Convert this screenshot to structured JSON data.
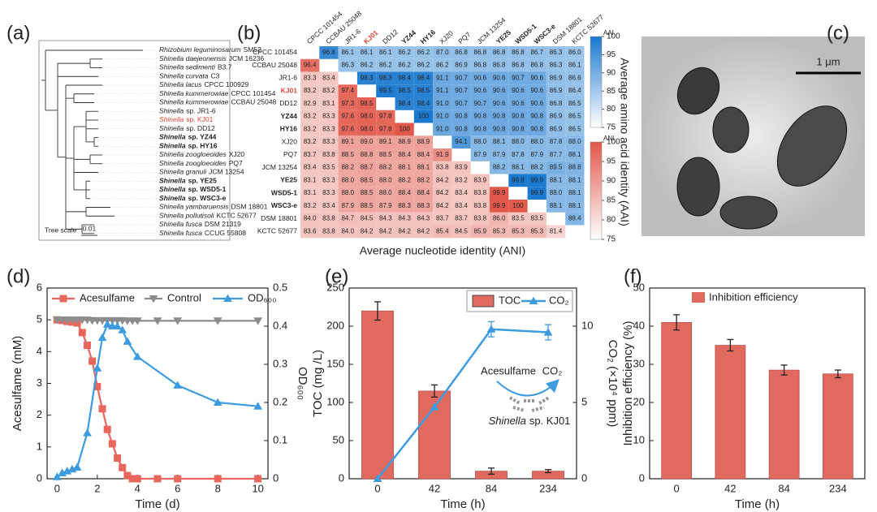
{
  "chart_data": [
    {
      "type": "tree",
      "panel_label": "(a)",
      "leaves": [
        {
          "species": "Rhizobium leguminosarum",
          "strain": "SM52"
        },
        {
          "species": "Shinella daejeonensis",
          "strain": "JCM 16236"
        },
        {
          "species": "Shinella sedimenti",
          "strain": "B3.7"
        },
        {
          "species": "Shinella curvata",
          "strain": "C3"
        },
        {
          "species": "Shinella lacus",
          "strain": "CPCC 100929"
        },
        {
          "species": "Shinella kummerowiae",
          "strain": "CPCC 101454"
        },
        {
          "species": "Shinella kummerowiae",
          "strain": "CCBAU 25048"
        },
        {
          "species": "Shinella",
          "strain": "sp. JR1-6"
        },
        {
          "species": "Shinella",
          "strain": "sp. KJ01",
          "color": "#e0463a"
        },
        {
          "species": "Shinella",
          "strain": "sp. DD12"
        },
        {
          "species": "Shinella",
          "strain": "sp. YZ44",
          "bold": true
        },
        {
          "species": "Shinella",
          "strain": "sp. HY16",
          "bold": true
        },
        {
          "species": "Shinella zoogloeoides",
          "strain": "XJ20"
        },
        {
          "species": "Shinella zoogloeoides",
          "strain": "PQ7"
        },
        {
          "species": "Shinella granuli",
          "strain": "JCM 13254"
        },
        {
          "species": "Shinella",
          "strain": "sp. YE25",
          "bold": true
        },
        {
          "species": "Shinella",
          "strain": "sp. WSD5-1",
          "bold": true
        },
        {
          "species": "Shinella",
          "strain": "sp. WSC3-e",
          "bold": true
        },
        {
          "species": "Shinella yambaruensis",
          "strain": "DSM 18801"
        },
        {
          "species": "Shinella pollutisoli",
          "strain": "KCTC 52677"
        },
        {
          "species": "Shinella fusca",
          "strain": "DSM 21319"
        },
        {
          "species": "Shinella fusca",
          "strain": "CCUG 55808"
        }
      ],
      "scale_label": "Tree scale",
      "scale_value": 0.01
    },
    {
      "type": "heatmap",
      "panel_label": "(b)",
      "rows": [
        "CPCC 101454",
        "CCBAU 25048",
        "JR1-6",
        "KJ01",
        "DD12",
        "YZ44",
        "HY16",
        "XJ20",
        "PQ7",
        "JCM 13254",
        "YE25",
        "WSD5-1",
        "WSC3-e",
        "DSM 18801",
        "KCTC 52677"
      ],
      "columns": [
        "CPCC 101454",
        "CCBAU 25048",
        "JR1-6",
        "KJ01",
        "DD12",
        "YZ44",
        "HY16",
        "XJ20",
        "PQ7",
        "JCM 13254",
        "YE25",
        "WSD5-1",
        "WSC3-e",
        "DSM 18801",
        "KCTC 52677"
      ],
      "emphasis": [
        "normal",
        "normal",
        "normal",
        "red",
        "normal",
        "bold",
        "bold",
        "normal",
        "normal",
        "normal",
        "bold",
        "bold",
        "bold",
        "normal",
        "normal"
      ],
      "values": [
        [
          null,
          96.8,
          86.1,
          86.1,
          86.1,
          86.2,
          86.2,
          87.0,
          86.8,
          86.8,
          86.8,
          86.8,
          86.7,
          86.3,
          86.0
        ],
        [
          96.4,
          null,
          86.3,
          86.2,
          86.2,
          86.2,
          86.2,
          86.2,
          86.9,
          86.8,
          86.8,
          86.8,
          86.8,
          86.3,
          86.1
        ],
        [
          83.3,
          83.4,
          null,
          98.3,
          98.3,
          98.4,
          98.4,
          91.1,
          90.7,
          90.6,
          90.6,
          90.7,
          90.6,
          86.9,
          86.6
        ],
        [
          83.2,
          83.2,
          97.4,
          null,
          99.5,
          98.5,
          98.5,
          91.1,
          90.7,
          90.6,
          90.6,
          90.6,
          90.6,
          86.9,
          86.4
        ],
        [
          82.9,
          83.1,
          97.3,
          98.5,
          null,
          98.4,
          98.4,
          91.0,
          90.7,
          90.7,
          90.6,
          90.6,
          90.6,
          86.8,
          86.5
        ],
        [
          83.2,
          83.3,
          97.6,
          98.0,
          97.8,
          null,
          100,
          91.0,
          90.8,
          90.8,
          90.8,
          90.8,
          90.8,
          86.9,
          86.5
        ],
        [
          83.2,
          83.3,
          97.6,
          98.0,
          97.8,
          100,
          null,
          91.0,
          90.8,
          90.8,
          90.8,
          90.8,
          90.8,
          86.9,
          86.5
        ],
        [
          83.2,
          83.3,
          89.1,
          89.0,
          89.1,
          88.9,
          88.9,
          null,
          94.1,
          88.0,
          88.1,
          88.0,
          88.0,
          87.8,
          88.0
        ],
        [
          83.7,
          83.8,
          88.5,
          88.8,
          88.5,
          88.4,
          88.4,
          91.9,
          null,
          87.9,
          87.9,
          87.8,
          87.9,
          87.7,
          88.1
        ],
        [
          83.4,
          83.5,
          88.2,
          88.7,
          88.2,
          88.1,
          88.1,
          83.8,
          83.9,
          null,
          88.2,
          88.1,
          88.2,
          89.5,
          88.8
        ],
        [
          83.1,
          83.3,
          88.0,
          88.5,
          88.0,
          88.2,
          88.2,
          84.2,
          83.2,
          83.9,
          null,
          99.9,
          99.9,
          88.1,
          88.1
        ],
        [
          83.1,
          83.3,
          88.0,
          88.5,
          88.0,
          88.4,
          88.4,
          84.2,
          83.4,
          83.8,
          99.9,
          null,
          99.9,
          88.0,
          88.1
        ],
        [
          83.2,
          83.4,
          87.9,
          88.5,
          87.9,
          88.3,
          88.3,
          84.2,
          83.4,
          83.8,
          99.9,
          100,
          null,
          88.1,
          88.1
        ],
        [
          84.0,
          83.8,
          84.7,
          84.5,
          84.3,
          84.3,
          84.3,
          83.7,
          83.7,
          83.8,
          86.0,
          83.5,
          83.5,
          null,
          88.4
        ],
        [
          83.6,
          83.8,
          84.0,
          84.2,
          84.2,
          84.2,
          84.2,
          85.4,
          84.5,
          85.9,
          85.3,
          85.3,
          85.3,
          81.4,
          null
        ]
      ],
      "value_labels": [
        [
          null,
          "96.8",
          "86.1",
          "86.1",
          "86.1",
          "86.2",
          "86.2",
          "87.0",
          "86.8",
          "86.8",
          "86.8",
          "86.8",
          "86.7",
          "86.3",
          "86.0"
        ],
        [
          "96.4",
          null,
          "86.3",
          "86.2",
          "86.2",
          "86.2",
          "86.2",
          "86.2",
          "86.9",
          "86.8",
          "86.8",
          "86.8",
          "86.8",
          "86.3",
          "86.1"
        ],
        [
          "83.3",
          "83.4",
          null,
          "98.3",
          "98.3",
          "98.4",
          "98.4",
          "91.1",
          "90.7",
          "90.6",
          "90.6",
          "90.7",
          "90.6",
          "86.9",
          "86.6"
        ],
        [
          "83.2",
          "83.2",
          "97.4",
          null,
          "99.5",
          "98.5",
          "98.5",
          "91.1",
          "90.7",
          "90.6",
          "90.6",
          "90.6",
          "90.6",
          "86.9",
          "86.4"
        ],
        [
          "82.9",
          "83.1",
          "97.3",
          "98.5",
          null,
          "98.4",
          "98.4",
          "91.0",
          "90.7",
          "90.7",
          "90.6",
          "90.6",
          "90.6",
          "86.8",
          "86.5"
        ],
        [
          "83.2",
          "83.3",
          "97.6",
          "98.0",
          "97.8",
          null,
          "100",
          "91.0",
          "90.8",
          "90.8",
          "90.8",
          "90.8",
          "90.8",
          "86.9",
          "86.5"
        ],
        [
          "83.2",
          "83.3",
          "97.6",
          "98.0",
          "97.8",
          "100",
          null,
          "91.0",
          "90.8",
          "90.8",
          "90.8",
          "90.8",
          "90.8",
          "86.9",
          "86.5"
        ],
        [
          "83.2",
          "83.3",
          "89.1",
          "89.0",
          "89.1",
          "88.9",
          "88.9",
          null,
          "94.1",
          "88.0",
          "88.1",
          "88.0",
          "88.0",
          "87.8",
          "88.0"
        ],
        [
          "83.7",
          "83.8",
          "88.5",
          "88.8",
          "88.5",
          "88.4",
          "88.4",
          "91.9",
          null,
          "87.9",
          "87.9",
          "87.8",
          "87.9",
          "87.7",
          "88.1"
        ],
        [
          "83.4",
          "83.5",
          "88.2",
          "88.7",
          "88.2",
          "88.1",
          "88.1",
          "83.8",
          "83.9",
          null,
          "88.2",
          "88.1",
          "88.2",
          "89.5",
          "88.8"
        ],
        [
          "83.1",
          "83.3",
          "88.0",
          "88.5",
          "88.0",
          "88.2",
          "88.2",
          "84.2",
          "83.2",
          "83.9",
          null,
          "99.9",
          "99.9",
          "88.1",
          "88.1"
        ],
        [
          "83.1",
          "83.3",
          "88.0",
          "88.5",
          "88.0",
          "88.4",
          "88.4",
          "84.2",
          "83.4",
          "83.8",
          "99.9",
          null,
          "99.9",
          "88.0",
          "88.1"
        ],
        [
          "83.2",
          "83.4",
          "87.9",
          "88.5",
          "87.9",
          "88.3",
          "88.3",
          "84.2",
          "83.4",
          "83.8",
          "99.9",
          "100",
          null,
          "88.1",
          "88.1"
        ],
        [
          "84.0",
          "83.8",
          "84.7",
          "84.5",
          "84.3",
          "84.3",
          "84.3",
          "83.7",
          "83.7",
          "83.8",
          "86.0",
          "83.5",
          "83.5",
          null,
          "88.4"
        ],
        [
          "83.6",
          "83.8",
          "84.0",
          "84.2",
          "84.2",
          "84.2",
          "84.2",
          "85.4",
          "84.5",
          "85.9",
          "85.3",
          "85.3",
          "85.3",
          "81.4",
          null
        ]
      ],
      "xlabel": "Average nucleotide identity (ANI)",
      "y2label": "Average amino acid identity (AAI)",
      "colorbars": [
        {
          "name": "AAI",
          "lim": [
            75,
            100
          ],
          "ticks": [
            75,
            80,
            85,
            90,
            95,
            100
          ],
          "colors": [
            "#ffffff",
            "#1a78cf"
          ]
        },
        {
          "name": "ANI",
          "lim": [
            75,
            100
          ],
          "ticks": [
            75,
            80,
            85,
            90,
            95,
            100
          ],
          "colors": [
            "#ffffff",
            "#e2584a"
          ]
        }
      ]
    },
    {
      "type": "image",
      "panel_label": "(c)",
      "scale_bar": "1 μm"
    },
    {
      "type": "line",
      "panel_label": "(d)",
      "xlabel": "Time (d)",
      "ylabel": "Acesulfame (mM)",
      "y2label": "OD₆₀₀",
      "xlim": [
        -0.5,
        10.5
      ],
      "xticks": [
        0,
        2,
        4,
        6,
        8,
        10
      ],
      "ylim": [
        0,
        6
      ],
      "yticks": [
        0,
        1,
        2,
        3,
        4,
        5,
        6
      ],
      "y2lim": [
        0,
        0.5
      ],
      "y2ticks": [
        0,
        0.1,
        0.2,
        0.3,
        0.4,
        0.5
      ],
      "series": [
        {
          "name": "Acesulfame",
          "color": "#e8665c",
          "marker": "square",
          "x": [
            0,
            0.25,
            0.5,
            0.75,
            1,
            1.25,
            1.5,
            1.75,
            2,
            2.25,
            2.5,
            2.75,
            3,
            3.25,
            3.5,
            3.75,
            4,
            5,
            6,
            8,
            10
          ],
          "values": [
            5,
            4.98,
            4.95,
            4.93,
            4.9,
            4.6,
            4.2,
            3.7,
            2.9,
            2.2,
            1.55,
            1.1,
            0.65,
            0.35,
            0.1,
            0,
            0,
            0,
            0,
            0,
            0
          ]
        },
        {
          "name": "Control",
          "color": "#8c8c8c",
          "marker": "triangle-down",
          "x": [
            0,
            0.25,
            0.5,
            0.75,
            1,
            1.25,
            1.5,
            1.75,
            2,
            2.25,
            2.5,
            2.75,
            3,
            3.25,
            3.5,
            3.75,
            4,
            5,
            6,
            8,
            10
          ],
          "values": [
            5,
            5,
            5,
            5,
            5,
            5,
            5,
            4.98,
            4.98,
            4.98,
            4.98,
            4.98,
            4.98,
            4.98,
            4.97,
            4.97,
            4.97,
            4.97,
            4.97,
            4.97,
            4.97
          ]
        },
        {
          "name": "OD₆₀₀",
          "color": "#3d9be0",
          "marker": "triangle-up",
          "axis": "y2",
          "x": [
            0,
            0.25,
            0.5,
            0.75,
            1,
            1.5,
            2,
            2.25,
            2.5,
            2.75,
            3,
            3.25,
            3.5,
            4,
            6,
            8,
            10
          ],
          "values": [
            0.005,
            0.015,
            0.02,
            0.025,
            0.03,
            0.12,
            0.29,
            0.37,
            0.405,
            0.4,
            0.4,
            0.39,
            0.36,
            0.32,
            0.245,
            0.2,
            0.19
          ]
        }
      ]
    },
    {
      "type": "bar-line",
      "panel_label": "(e)",
      "xlabel": "Time (h)",
      "ylabel": "TOC (mg /L)",
      "y2label": "CO₂ (×10⁴ ppm)",
      "categories": [
        "0",
        "42",
        "84",
        "234"
      ],
      "ylim": [
        0,
        250
      ],
      "yticks": [
        0,
        50,
        100,
        150,
        200,
        250
      ],
      "y2lim": [
        0,
        12.5
      ],
      "y2ticks": [
        0,
        5,
        10
      ],
      "series": [
        {
          "name": "TOC",
          "type": "bar",
          "color": "#e06a5f",
          "values": [
            220,
            115,
            10,
            10
          ],
          "errors": [
            12,
            8,
            4,
            2
          ]
        },
        {
          "name": "CO₂",
          "type": "line",
          "color": "#3d9be0",
          "marker": "triangle-up",
          "axis": "y2",
          "values": [
            0,
            4.7,
            9.8,
            9.6
          ],
          "errors": [
            0,
            0,
            0.5,
            0.5
          ]
        }
      ],
      "annotations": [
        "Acesulfame",
        "CO₂",
        "Shinella",
        "sp. KJ01"
      ]
    },
    {
      "type": "bar",
      "panel_label": "(f)",
      "xlabel": "Time (h)",
      "ylabel": "Inhibition efficiency (%)",
      "categories": [
        "0",
        "42",
        "84",
        "234"
      ],
      "ylim": [
        0,
        50
      ],
      "yticks": [
        0,
        10,
        20,
        30,
        40,
        50
      ],
      "series": [
        {
          "name": "Inhibition efficiency",
          "type": "bar",
          "color": "#e06a5f",
          "values": [
            41,
            35,
            28.5,
            27.5
          ],
          "errors": [
            2,
            1.5,
            1.3,
            1
          ]
        }
      ]
    }
  ]
}
